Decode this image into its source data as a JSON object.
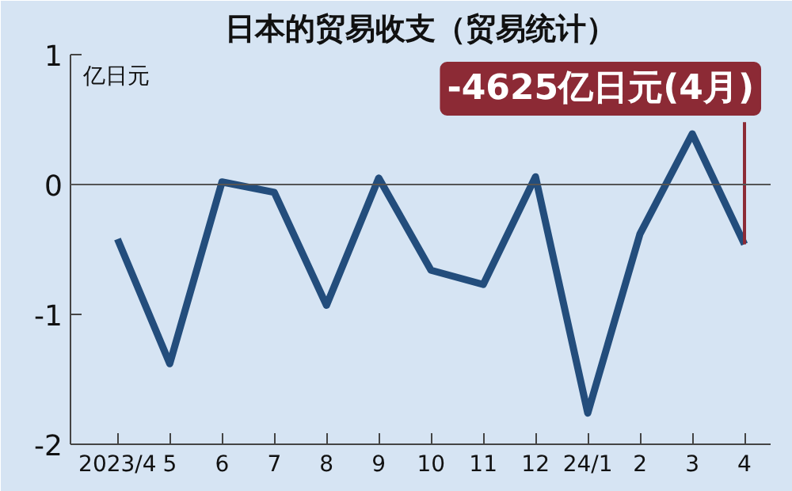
{
  "chart_data": {
    "type": "line",
    "title": "日本的贸易收支（贸易统计）",
    "ylabel": "亿日元",
    "categories": [
      "2023/4",
      "5",
      "6",
      "7",
      "8",
      "9",
      "10",
      "11",
      "12",
      "24/1",
      "2",
      "3",
      "4"
    ],
    "series": [
      {
        "color": "#234d7c",
        "values": [
          -0.42,
          -1.38,
          0.02,
          -0.06,
          -0.93,
          0.05,
          -0.66,
          -0.77,
          0.06,
          -1.76,
          -0.38,
          0.39,
          -0.46
        ]
      }
    ],
    "ylim": [
      -2,
      1
    ],
    "yticks": [
      -2,
      -1,
      0,
      1
    ],
    "ref_lines": [
      {
        "axis": "y",
        "value": 0,
        "color": "#555555"
      }
    ],
    "annotations": [
      {
        "text": "-4625亿日元(4月)",
        "x": "4",
        "y": -0.46
      }
    ],
    "grid": false,
    "marker": "none",
    "line_style": "solid"
  }
}
